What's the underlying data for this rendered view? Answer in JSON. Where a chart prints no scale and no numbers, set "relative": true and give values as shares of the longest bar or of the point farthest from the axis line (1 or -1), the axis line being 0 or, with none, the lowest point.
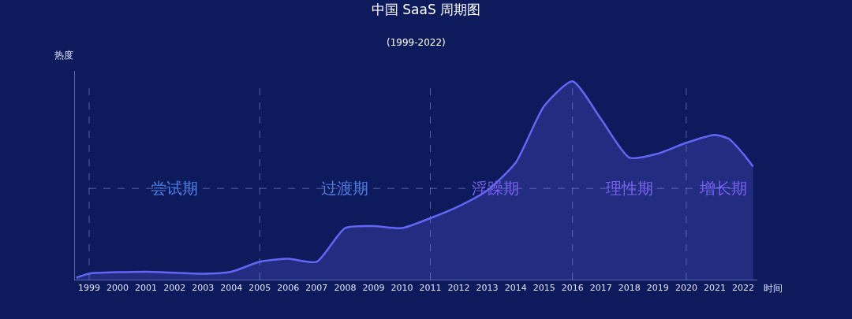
{
  "chart_data": {
    "type": "area",
    "title": "中国 SaaS 周期图",
    "subtitle": "(1999-2022)",
    "xlabel": "时间",
    "ylabel": "热度",
    "relative": true,
    "color": "#6266f5",
    "marker": "none",
    "grid": false,
    "legend": false,
    "x": [
      1998.55,
      1999,
      2001,
      2003,
      2004,
      2005,
      2006,
      2007,
      2008,
      2009,
      2010,
      2011,
      2012,
      2013,
      2014,
      2015,
      2016,
      2017,
      2018,
      2019,
      2020,
      2021,
      2021.5,
      2022,
      2022.35
    ],
    "values": [
      0.01,
      0.03,
      0.04,
      0.03,
      0.04,
      0.09,
      0.105,
      0.09,
      0.26,
      0.27,
      0.26,
      0.31,
      0.37,
      0.45,
      0.59,
      0.875,
      1,
      0.81,
      0.615,
      0.635,
      0.69,
      0.73,
      0.71,
      0.635,
      0.57
    ],
    "xlim": [
      1998.5,
      2022.5
    ],
    "xticks": [
      1999,
      2000,
      2001,
      2002,
      2003,
      2004,
      2005,
      2006,
      2007,
      2008,
      2009,
      2010,
      2011,
      2012,
      2013,
      2014,
      2015,
      2016,
      2017,
      2018,
      2019,
      2020,
      2021,
      2022
    ],
    "ref_lines": [
      {
        "axis": "x",
        "value": 1999,
        "line_style": "dashed"
      },
      {
        "axis": "x",
        "value": 2005,
        "line_style": "dashed"
      },
      {
        "axis": "x",
        "value": 2011,
        "line_style": "dashed"
      },
      {
        "axis": "x",
        "value": 2016,
        "line_style": "dashed"
      },
      {
        "axis": "x",
        "value": 2020,
        "line_style": "dashed"
      },
      {
        "axis": "y",
        "value": 0.46,
        "line_style": "dashed"
      }
    ],
    "annotations": [
      {
        "text": "尝试期",
        "x": 2002,
        "y": 0.46
      },
      {
        "text": "过渡期",
        "x": 2008,
        "y": 0.46
      },
      {
        "text": "浮躁期",
        "x": 2013.3,
        "y": 0.46
      },
      {
        "text": "理性期",
        "x": 2018,
        "y": 0.46
      },
      {
        "text": "增长期",
        "x": 2021.3,
        "y": 0.46
      }
    ]
  }
}
